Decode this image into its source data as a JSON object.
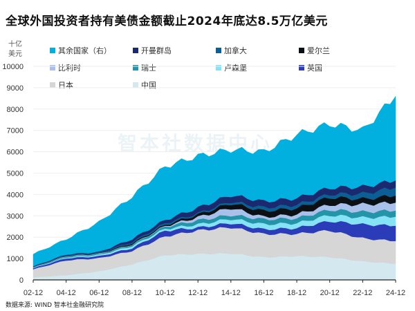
{
  "chart_data": {
    "type": "area",
    "stacked": true,
    "title": "全球外国投资者持有美债金额截止2024年底达8.5万亿美元",
    "ylabel": "十亿美元",
    "ylabel_lines": [
      "十亿",
      "美元"
    ],
    "ylim": [
      0,
      10000
    ],
    "yticks": [
      0,
      1000,
      2000,
      3000,
      4000,
      5000,
      6000,
      7000,
      8000,
      9000,
      10000
    ],
    "x": [
      "02-12",
      "04-12",
      "06-12",
      "08-12",
      "10-12",
      "12-12",
      "14-12",
      "16-12",
      "18-12",
      "20-12",
      "22-12",
      "24-12"
    ],
    "legend_placement": "top",
    "series": [
      {
        "name": "中国",
        "color": "#d3e9ef",
        "values": [
          120,
          220,
          400,
          730,
          1160,
          1220,
          1240,
          1060,
          1120,
          1070,
          870,
          760
        ]
      },
      {
        "name": "日本",
        "color": "#d6d6d6",
        "values": [
          380,
          700,
          620,
          630,
          880,
          1100,
          1230,
          1090,
          1040,
          1250,
          1080,
          1060
        ]
      },
      {
        "name": "英国",
        "color": "#2a3cb8",
        "values": [
          50,
          100,
          90,
          130,
          270,
          130,
          200,
          220,
          270,
          440,
          650,
          720
        ]
      },
      {
        "name": "卢森堡",
        "color": "#86e2f5",
        "values": [
          20,
          40,
          60,
          100,
          90,
          150,
          200,
          240,
          230,
          280,
          320,
          420
        ]
      },
      {
        "name": "瑞士",
        "color": "#2494a8",
        "values": [
          20,
          40,
          40,
          60,
          100,
          190,
          180,
          230,
          230,
          250,
          270,
          290
        ]
      },
      {
        "name": "比利时",
        "color": "#a9c1ea",
        "values": [
          10,
          20,
          20,
          15,
          30,
          150,
          330,
          110,
          180,
          240,
          350,
          370
        ]
      },
      {
        "name": "爱尔兰",
        "color": "#0b1015",
        "values": [
          10,
          20,
          20,
          50,
          50,
          120,
          210,
          280,
          290,
          340,
          250,
          330
        ]
      },
      {
        "name": "加拿大",
        "color": "#0c5f94",
        "values": [
          20,
          40,
          40,
          60,
          80,
          60,
          90,
          160,
          160,
          150,
          250,
          380
        ]
      },
      {
        "name": "开曼群岛",
        "color": "#1b2a6e",
        "values": [
          10,
          20,
          20,
          140,
          150,
          260,
          300,
          290,
          310,
          300,
          320,
          330
        ]
      },
      {
        "name": "其余国家（右）",
        "color": "#02b0e0",
        "values": [
          560,
          700,
          1390,
          1985,
          2490,
          2420,
          2120,
          2320,
          2970,
          2980,
          2640,
          3940
        ]
      }
    ],
    "legend_order": [
      "其余国家（右）",
      "开曼群岛",
      "加拿大",
      "爱尔兰",
      "比利时",
      "瑞士",
      "卢森堡",
      "英国",
      "日本",
      "中国"
    ],
    "watermark": "智本社数据中心",
    "source": "数据来源: WIND 智本社金融研究院"
  }
}
